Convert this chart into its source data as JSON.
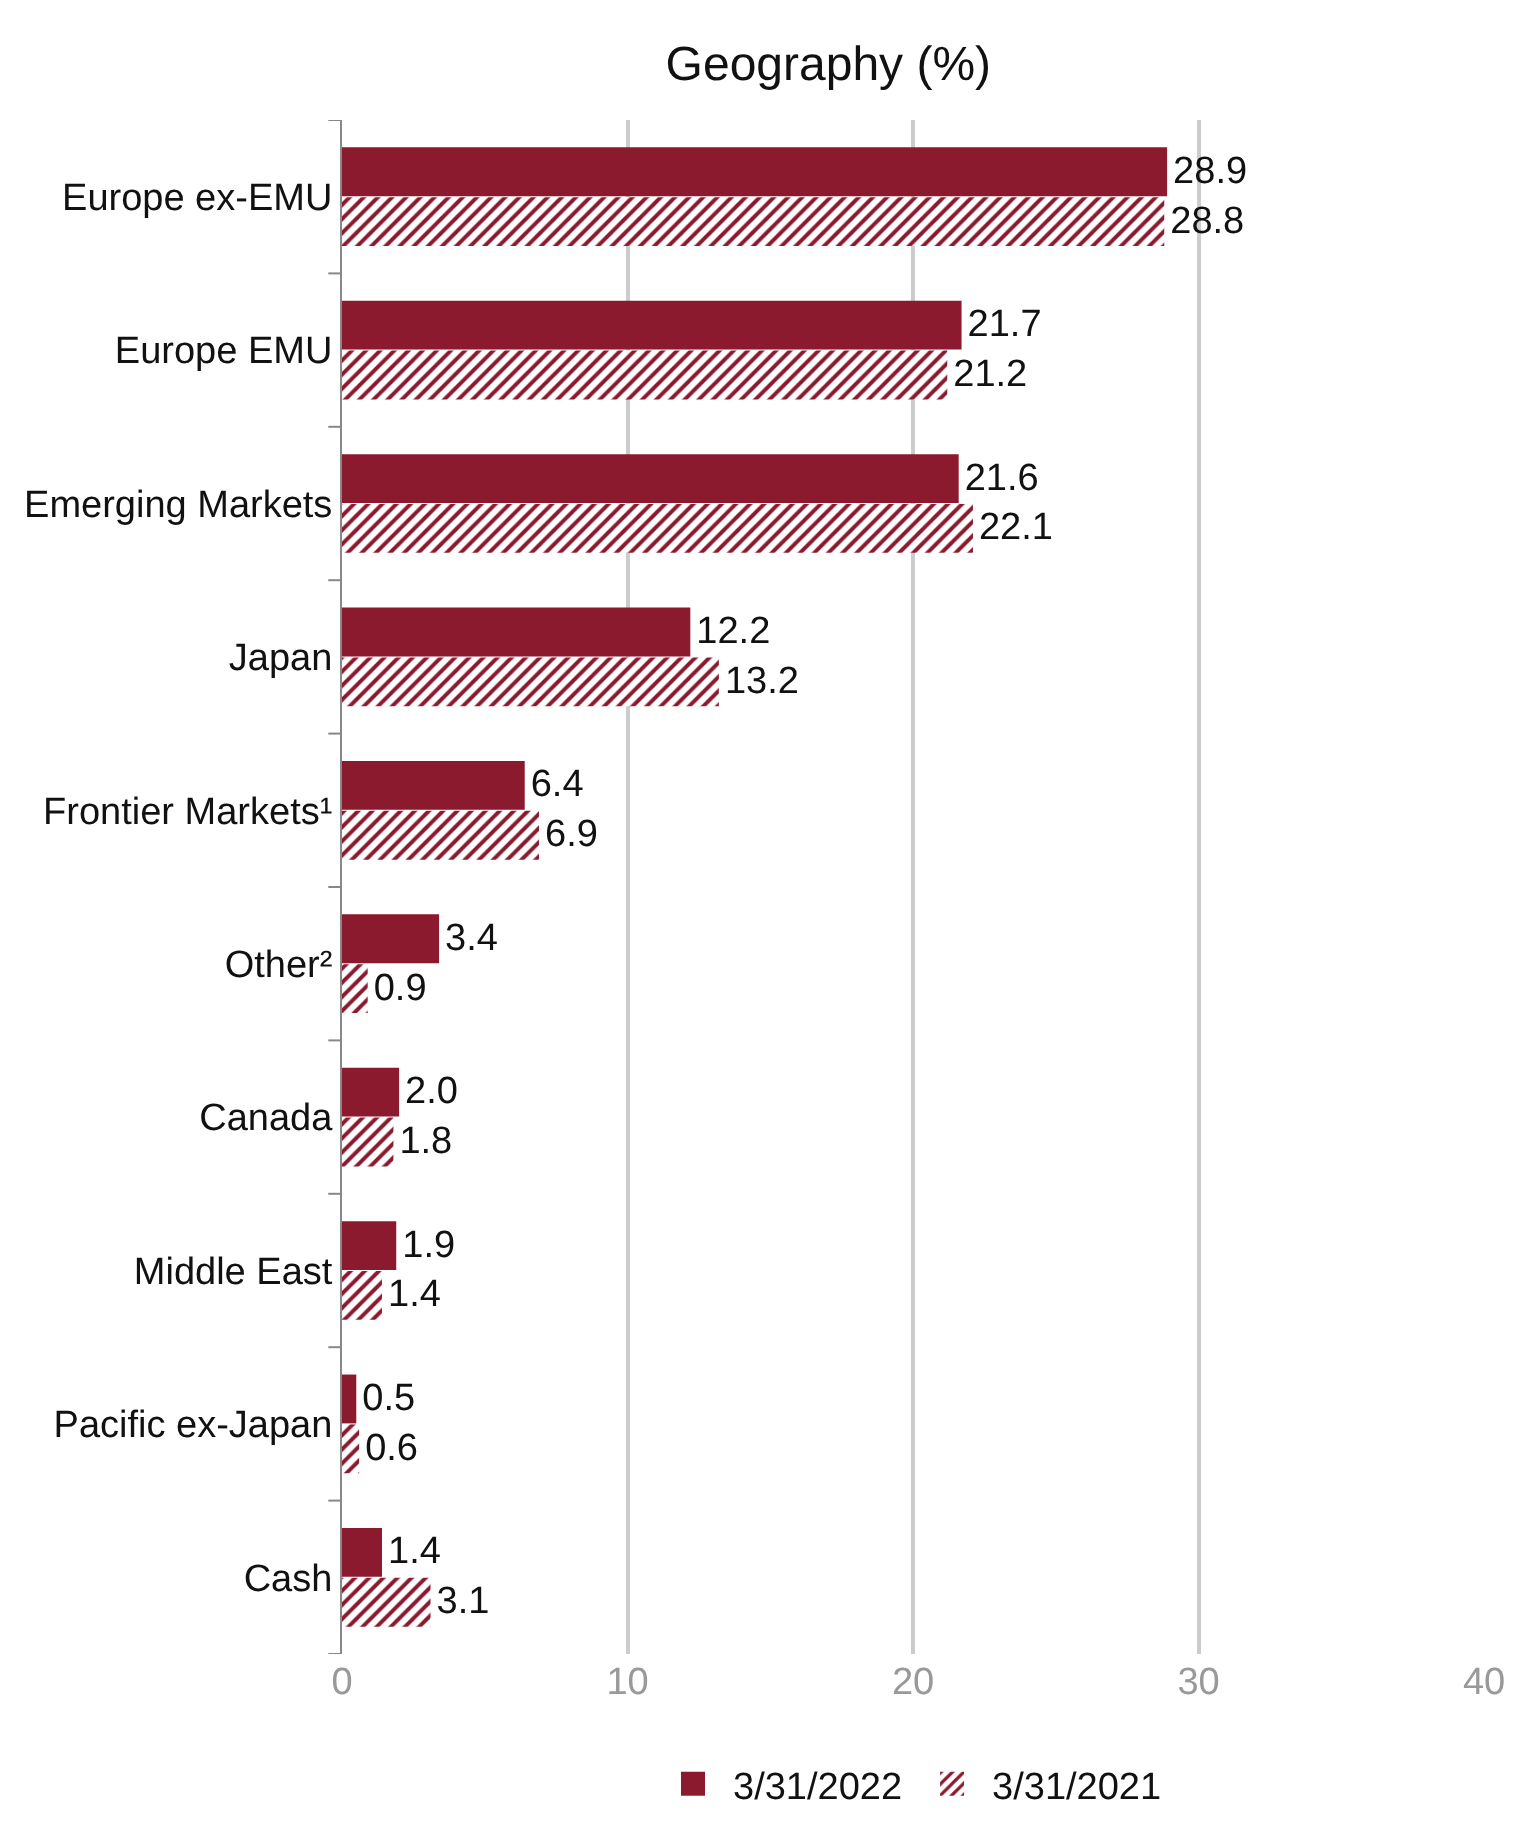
{
  "chart_data": {
    "type": "bar",
    "orientation": "horizontal",
    "title": "Geography (%)",
    "categories": [
      "Europe ex-EMU",
      "Europe EMU",
      "Emerging Markets",
      "Japan",
      "Frontier Markets¹",
      "Other²",
      "Canada",
      "Middle East",
      "Pacific ex-Japan",
      "Cash"
    ],
    "series": [
      {
        "name": "3/31/2022",
        "color": "#8c1a2e",
        "values": [
          28.9,
          21.7,
          21.6,
          12.2,
          6.4,
          3.4,
          2.0,
          1.9,
          0.5,
          1.4
        ],
        "value_labels": [
          "28.9",
          "21.7",
          "21.6",
          "12.2",
          "6.4",
          "3.4",
          "2.0",
          "1.9",
          "0.5",
          "1.4"
        ]
      },
      {
        "name": "3/31/2021",
        "color": "#8c1a2e",
        "values": [
          28.8,
          21.2,
          22.1,
          13.2,
          6.9,
          0.9,
          1.8,
          1.4,
          0.6,
          3.1
        ],
        "value_labels": [
          "28.8",
          "21.2",
          "22.1",
          "13.2",
          "6.9",
          "0.9",
          "1.8",
          "1.4",
          "0.6",
          "3.1"
        ]
      }
    ],
    "xlim": [
      0,
      40
    ],
    "xticks": [
      0,
      10,
      20,
      30,
      40
    ],
    "grid": "x",
    "legend": "bottom"
  }
}
